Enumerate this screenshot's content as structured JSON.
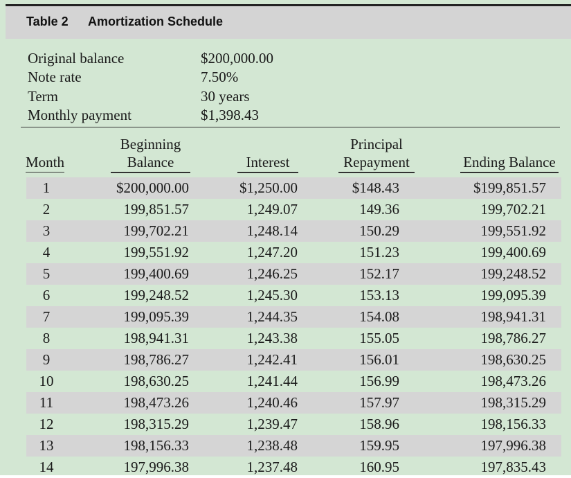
{
  "table": {
    "number": "Table 2",
    "title": "Amortization Schedule"
  },
  "summary": [
    {
      "label": "Original balance",
      "value": "$200,000.00"
    },
    {
      "label": "Note rate",
      "value": "7.50%"
    },
    {
      "label": "Term",
      "value": "30 years"
    },
    {
      "label": "Monthly payment",
      "value": "$1,398.43"
    }
  ],
  "columns": {
    "month": "Month",
    "beginning_1": "Beginning",
    "beginning_2": "Balance",
    "interest": "Interest",
    "principal_1": "Principal",
    "principal_2": "Repayment",
    "ending": "Ending Balance"
  },
  "rows": [
    {
      "month": "1",
      "beginning": "$200,000.00",
      "interest": "$1,250.00",
      "principal": "$148.43",
      "ending": "$199,851.57"
    },
    {
      "month": "2",
      "beginning": "199,851.57",
      "interest": "1,249.07",
      "principal": "149.36",
      "ending": "199,702.21"
    },
    {
      "month": "3",
      "beginning": "199,702.21",
      "interest": "1,248.14",
      "principal": "150.29",
      "ending": "199,551.92"
    },
    {
      "month": "4",
      "beginning": "199,551.92",
      "interest": "1,247.20",
      "principal": "151.23",
      "ending": "199,400.69"
    },
    {
      "month": "5",
      "beginning": "199,400.69",
      "interest": "1,246.25",
      "principal": "152.17",
      "ending": "199,248.52"
    },
    {
      "month": "6",
      "beginning": "199,248.52",
      "interest": "1,245.30",
      "principal": "153.13",
      "ending": "199,095.39"
    },
    {
      "month": "7",
      "beginning": "199,095.39",
      "interest": "1,244.35",
      "principal": "154.08",
      "ending": "198,941.31"
    },
    {
      "month": "8",
      "beginning": "198,941.31",
      "interest": "1,243.38",
      "principal": "155.05",
      "ending": "198,786.27"
    },
    {
      "month": "9",
      "beginning": "198,786.27",
      "interest": "1,242.41",
      "principal": "156.01",
      "ending": "198,630.25"
    },
    {
      "month": "10",
      "beginning": "198,630.25",
      "interest": "1,241.44",
      "principal": "156.99",
      "ending": "198,473.26"
    },
    {
      "month": "11",
      "beginning": "198,473.26",
      "interest": "1,240.46",
      "principal": "157.97",
      "ending": "198,315.29"
    },
    {
      "month": "12",
      "beginning": "198,315.29",
      "interest": "1,239.47",
      "principal": "158.96",
      "ending": "198,156.33"
    },
    {
      "month": "13",
      "beginning": "198,156.33",
      "interest": "1,238.48",
      "principal": "159.95",
      "ending": "197,996.38"
    },
    {
      "month": "14",
      "beginning": "197,996.38",
      "interest": "1,237.48",
      "principal": "160.95",
      "ending": "197,835.43"
    }
  ],
  "colors": {
    "page_background": "#d3e7d3",
    "title_bar": "#d4d4d4",
    "shaded_row": "#d5d5d5"
  }
}
